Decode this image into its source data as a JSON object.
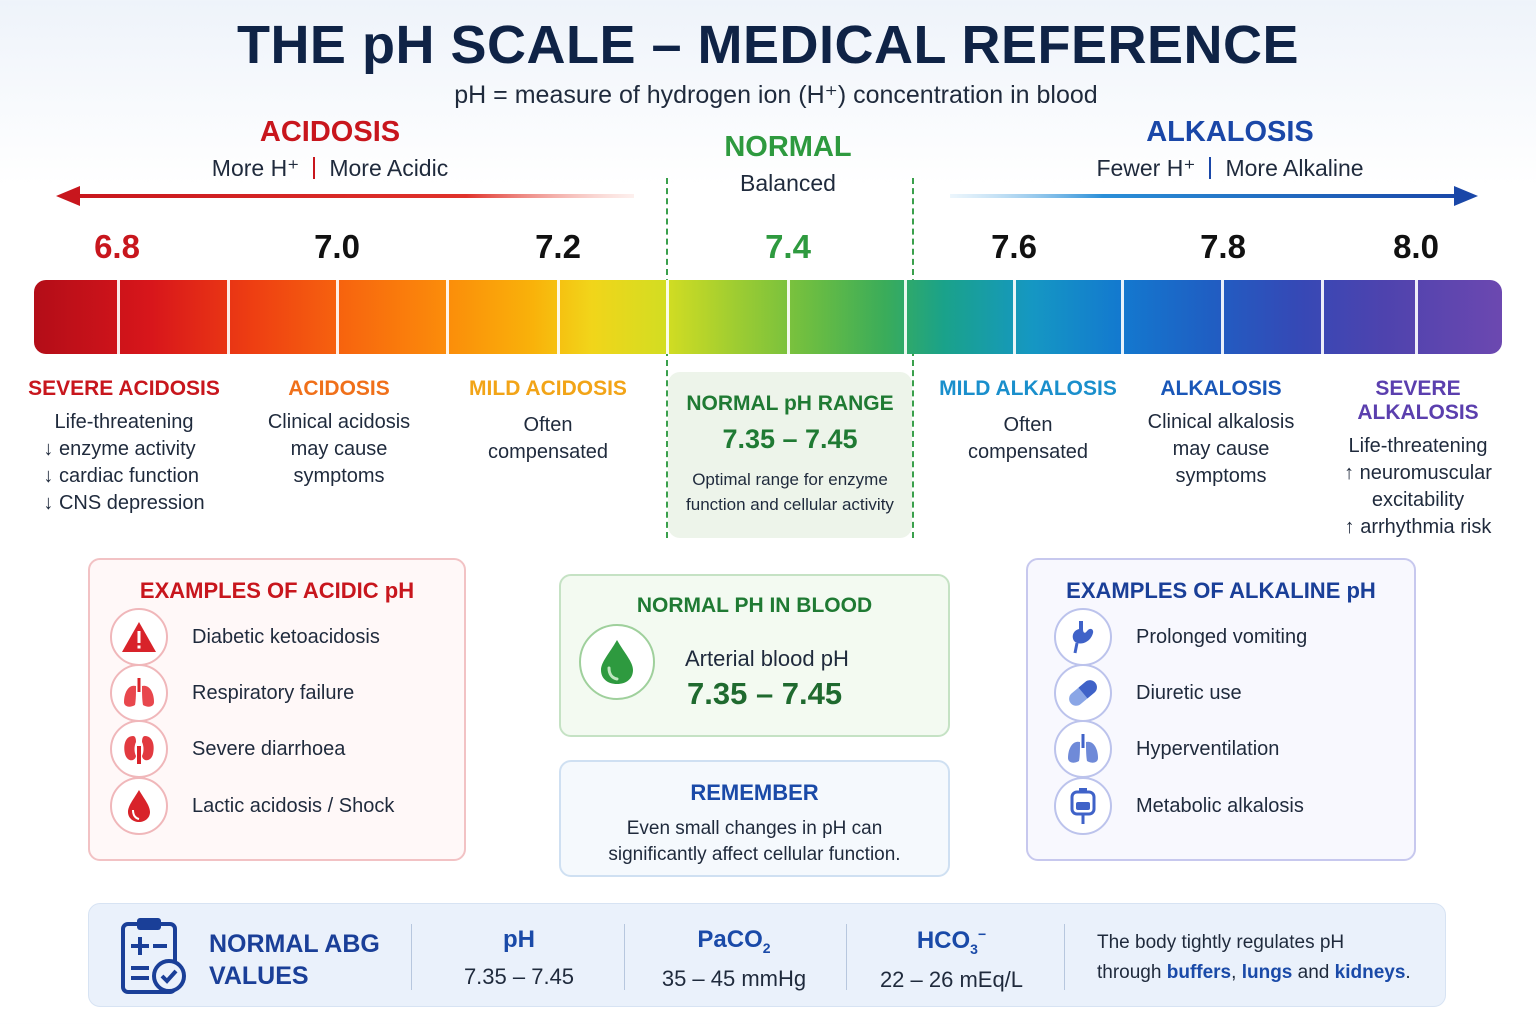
{
  "header": {
    "title": "THE pH SCALE – MEDICAL REFERENCE",
    "subtitle": "pH = measure of hydrogen ion (H⁺) concentration in blood"
  },
  "zones": {
    "acidosis": {
      "title": "ACIDOSIS",
      "sub_left": "More H⁺",
      "sub_right": "More Acidic",
      "color": "#c8161d"
    },
    "normal": {
      "title": "NORMAL",
      "sub": "Balanced",
      "color": "#2e9a3f"
    },
    "alkalosis": {
      "title": "ALKALOSIS",
      "sub_left": "Fewer H⁺",
      "sub_right": "More Alkaline",
      "color": "#1a47a8"
    }
  },
  "scale": {
    "ticks": [
      {
        "label": "6.8",
        "color": "#c8161d"
      },
      {
        "label": "7.0",
        "color": "#111111"
      },
      {
        "label": "7.2",
        "color": "#111111"
      },
      {
        "label": "7.4",
        "color": "#2e9a3f"
      },
      {
        "label": "7.6",
        "color": "#111111"
      },
      {
        "label": "7.8",
        "color": "#111111"
      },
      {
        "label": "8.0",
        "color": "#111111"
      }
    ]
  },
  "categories": {
    "severe_acidosis": {
      "title": "SEVERE ACIDOSIS",
      "color": "#c8161d",
      "lines": [
        "Life-threatening",
        "↓ enzyme activity",
        "↓ cardiac function",
        "↓ CNS depression"
      ]
    },
    "acidosis": {
      "title": "ACIDOSIS",
      "color": "#f0701a",
      "lines": [
        "Clinical acidosis",
        "may cause",
        "symptoms"
      ]
    },
    "mild_acidosis": {
      "title": "MILD ACIDOSIS",
      "color": "#f2a417",
      "lines": [
        "Often",
        "compensated"
      ]
    },
    "normal_range": {
      "title": "NORMAL pH RANGE",
      "value": "7.35 – 7.45",
      "lines": [
        "Optimal range for enzyme",
        "function and cellular activity"
      ]
    },
    "mild_alkalosis": {
      "title": "MILD ALKALOSIS",
      "color": "#1a8fcc",
      "lines": [
        "Often",
        "compensated"
      ]
    },
    "alkalosis": {
      "title": "ALKALOSIS",
      "color": "#1a57b8",
      "lines": [
        "Clinical alkalosis",
        "may cause",
        "symptoms"
      ]
    },
    "severe_alkalosis": {
      "title": "SEVERE ALKALOSIS",
      "color": "#5b3fae",
      "lines": [
        "Life-threatening",
        "↑ neuromuscular",
        "excitability",
        "↑ arrhythmia risk"
      ]
    }
  },
  "acid_examples": {
    "title": "EXAMPLES OF ACIDIC pH",
    "items": [
      {
        "label": "Diabetic ketoacidosis",
        "icon": "warning-icon"
      },
      {
        "label": "Respiratory failure",
        "icon": "lungs-icon"
      },
      {
        "label": "Severe diarrhoea",
        "icon": "kidneys-icon"
      },
      {
        "label": "Lactic acidosis / Shock",
        "icon": "blood-drop-icon"
      }
    ]
  },
  "blood": {
    "title": "NORMAL PH IN BLOOD",
    "label": "Arterial blood pH",
    "value": "7.35 – 7.45"
  },
  "remember": {
    "title": "REMEMBER",
    "lines": [
      "Even small changes in pH can",
      "significantly affect cellular function."
    ]
  },
  "alk_examples": {
    "title": "EXAMPLES OF ALKALINE pH",
    "items": [
      {
        "label": "Prolonged vomiting",
        "icon": "stomach-icon"
      },
      {
        "label": "Diuretic use",
        "icon": "pill-icon"
      },
      {
        "label": "Hyperventilation",
        "icon": "lungs-icon"
      },
      {
        "label": "Metabolic alkalosis",
        "icon": "iv-bag-icon"
      }
    ]
  },
  "abg": {
    "title_line1": "NORMAL ABG",
    "title_line2": "VALUES",
    "ph": {
      "head": "pH",
      "value": "7.35 – 7.45"
    },
    "paco2": {
      "head_main": "PaCO",
      "head_sub": "2",
      "value": "35 – 45 mmHg"
    },
    "hco3": {
      "head_main": "HCO",
      "head_sub": "3",
      "head_sup": "−",
      "value": "22 – 26 mEq/L"
    },
    "note_line1": "The body tightly regulates pH",
    "note_pre": "through ",
    "note_buffers": "buffers",
    "note_comma": ", ",
    "note_lungs": "lungs",
    "note_and": " and ",
    "note_kidneys": "kidneys",
    "note_end": "."
  }
}
